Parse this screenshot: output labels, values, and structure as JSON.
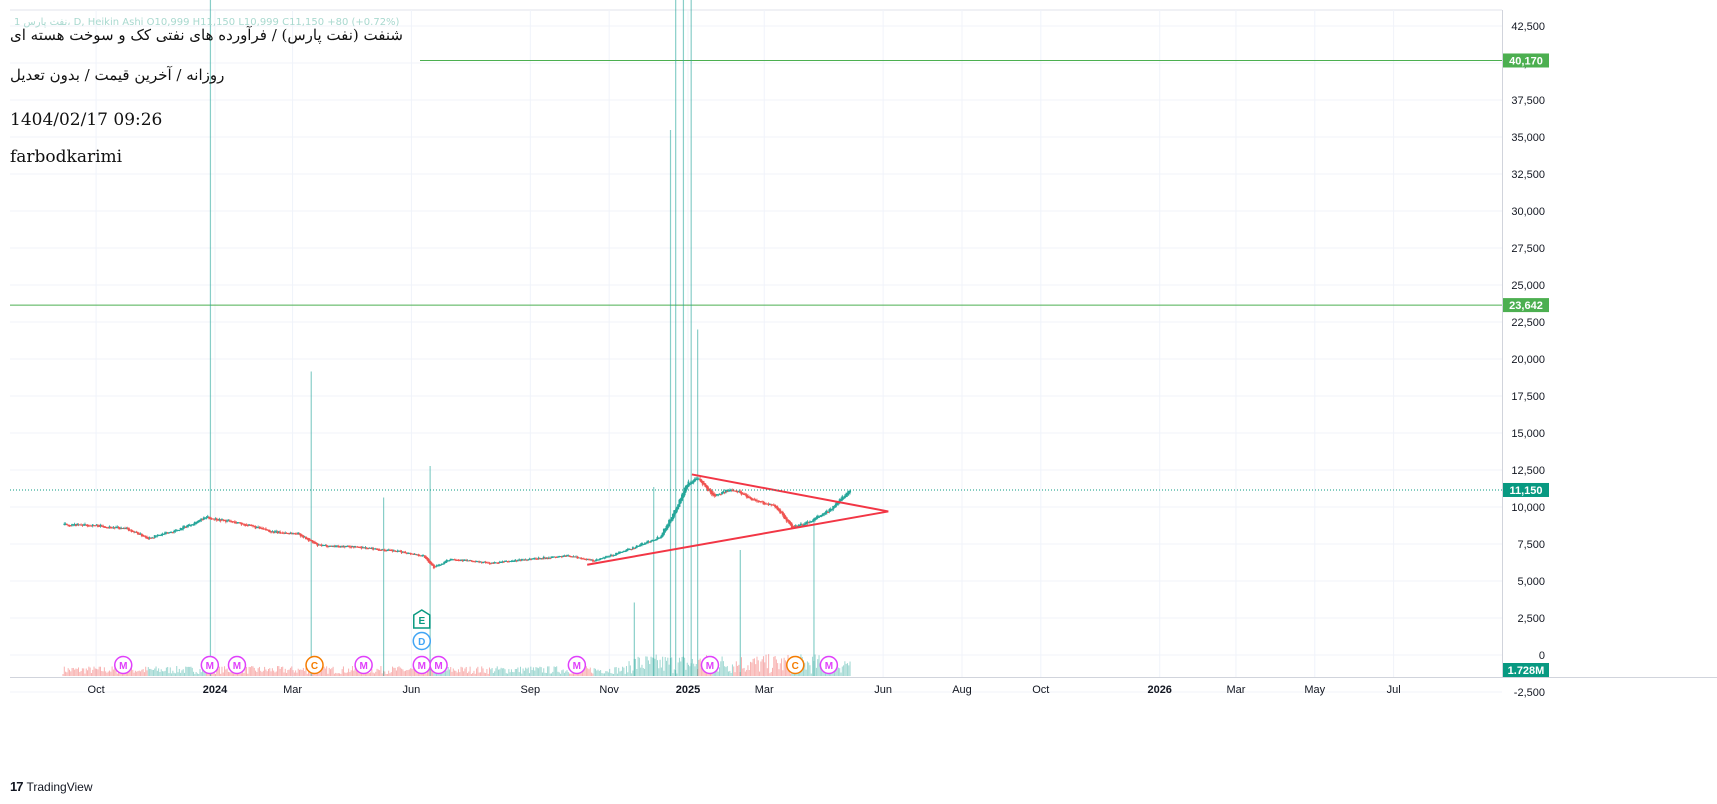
{
  "header": {
    "ohlc_line": "1 نفت پارس، D, Heikin Ashi  O10,999  H11,150  L10,999  C11,150  +80 (+0.72%)",
    "title": "شنفت (نفت پارس) / فرآورده های نفتی کک و سوخت هسته ای",
    "subtitle": "روزانه / آخرین قیمت / بدون تعدیل",
    "datetime": "1404/02/17 09:26",
    "author": "farbodkarimi"
  },
  "footer": {
    "brand": "TradingView"
  },
  "colors": {
    "up": "#26a69a",
    "down": "#ef5350",
    "level": "#4caf50",
    "trend": "#f23645",
    "current": "#089981",
    "marker_m": "#e040fb",
    "marker_c": "#f57c00",
    "marker_e": "#089981",
    "marker_d": "#42a5f5"
  },
  "chart_data": {
    "type": "candlestick",
    "chart_style": "Heikin Ashi",
    "interval": "D",
    "y_ticks": [
      "42,500",
      "40,000",
      "37,500",
      "35,000",
      "32,500",
      "30,000",
      "27,500",
      "25,000",
      "22,500",
      "20,000",
      "17,500",
      "15,000",
      "12,500",
      "10,000",
      "7,500",
      "5,000",
      "2,500",
      "0",
      "-2,500"
    ],
    "ylim": [
      -5000,
      44000
    ],
    "x_ticks": [
      "Oct",
      "2024",
      "Mar",
      "Jun",
      "Sep",
      "Nov",
      "2025",
      "Mar",
      "Jun",
      "Aug",
      "Oct",
      "2026",
      "Mar",
      "May",
      "Jul"
    ],
    "x_tick_dates": [
      "2023-10-01",
      "2024-01-01",
      "2024-03-01",
      "2024-06-01",
      "2024-09-01",
      "2024-11-01",
      "2025-01-01",
      "2025-03-01",
      "2025-06-01",
      "2025-08-01",
      "2025-10-01",
      "2026-01-01",
      "2026-03-01",
      "2026-05-01",
      "2026-07-01"
    ],
    "horizontal_levels": [
      {
        "price": 40170,
        "label": "40,170"
      },
      {
        "price": 23642,
        "label": "23,642"
      }
    ],
    "current_price": {
      "price": 11150,
      "label": "11,150"
    },
    "volume_label": "1.728M",
    "price_path": [
      [
        "2023-09-05",
        8800
      ],
      [
        "2023-10-01",
        8750
      ],
      [
        "2023-10-25",
        8500
      ],
      [
        "2023-11-10",
        7900
      ],
      [
        "2023-12-01",
        8400
      ],
      [
        "2023-12-25",
        9300
      ],
      [
        "2024-01-20",
        8900
      ],
      [
        "2024-02-15",
        8300
      ],
      [
        "2024-03-05",
        8200
      ],
      [
        "2024-03-20",
        7400
      ],
      [
        "2024-04-20",
        7300
      ],
      [
        "2024-05-25",
        6950
      ],
      [
        "2024-06-10",
        6700
      ],
      [
        "2024-06-18",
        5900
      ],
      [
        "2024-07-01",
        6500
      ],
      [
        "2024-08-01",
        6200
      ],
      [
        "2024-09-01",
        6500
      ],
      [
        "2024-10-01",
        6700
      ],
      [
        "2024-10-20",
        6350
      ],
      [
        "2024-11-15",
        7100
      ],
      [
        "2024-12-10",
        8000
      ],
      [
        "2024-12-20",
        9500
      ],
      [
        "2024-12-31",
        11600
      ],
      [
        "2025-01-08",
        11900
      ],
      [
        "2025-01-20",
        10800
      ],
      [
        "2025-02-05",
        11200
      ],
      [
        "2025-02-20",
        10500
      ],
      [
        "2025-03-10",
        10000
      ],
      [
        "2025-03-22",
        8600
      ],
      [
        "2025-04-05",
        9000
      ],
      [
        "2025-04-22",
        9900
      ],
      [
        "2025-05-06",
        11150
      ]
    ],
    "trend_lines": [
      {
        "from": [
          "2024-10-15",
          6100
        ],
        "to": [
          "2025-06-05",
          9700
        ]
      },
      {
        "from": [
          "2025-01-04",
          12200
        ],
        "to": [
          "2025-06-05",
          9700
        ]
      }
    ],
    "volume_spikes": [
      [
        "2023-12-28",
        8000
      ],
      [
        "2024-03-15",
        2900
      ],
      [
        "2024-05-10",
        1700
      ],
      [
        "2024-06-15",
        2000
      ],
      [
        "2024-11-20",
        700
      ],
      [
        "2024-12-05",
        1800
      ],
      [
        "2024-12-18",
        5200
      ],
      [
        "2024-12-22",
        11900
      ],
      [
        "2024-12-28",
        8000
      ],
      [
        "2025-01-03",
        10200
      ],
      [
        "2025-01-08",
        3300
      ],
      [
        "2025-02-10",
        1200
      ],
      [
        "2025-04-08",
        1500
      ]
    ],
    "event_markers": [
      [
        "M",
        "2023-10-22"
      ],
      [
        "M",
        "2023-12-28"
      ],
      [
        "M",
        "2024-01-18"
      ],
      [
        "C",
        "2024-03-18"
      ],
      [
        "M",
        "2024-04-25"
      ],
      [
        "M",
        "2024-06-09"
      ],
      [
        "M",
        "2024-06-22"
      ],
      [
        "M",
        "2024-10-07"
      ],
      [
        "M",
        "2025-01-18"
      ],
      [
        "C",
        "2025-03-25"
      ],
      [
        "M",
        "2025-04-20"
      ]
    ],
    "stacked_markers": [
      [
        "E",
        "2024-06-09"
      ],
      [
        "D",
        "2024-06-09"
      ]
    ]
  }
}
